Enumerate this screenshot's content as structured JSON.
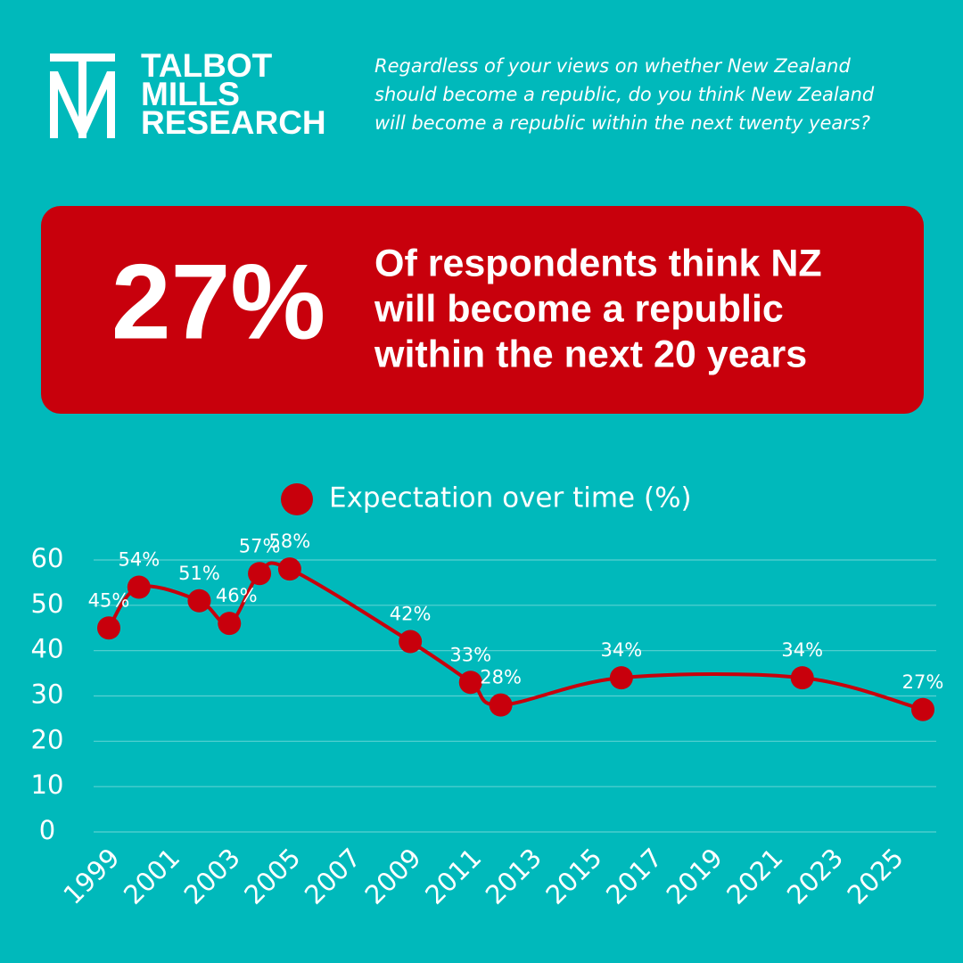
{
  "brand": {
    "lines": [
      "TALBOT",
      "MILLS",
      "RESEARCH"
    ]
  },
  "question": [
    "Regardless of your views on whether New Zealand",
    "should become a republic, do you think New Zealand",
    "will become a republic within the next twenty years?"
  ],
  "headline": {
    "figure": "27%",
    "lines": [
      "Of respondents think NZ",
      "will become a republic",
      "within the next 20 years"
    ]
  },
  "chart_data": {
    "type": "line",
    "x": [
      1999,
      2000,
      2002,
      2003,
      2004,
      2005,
      2009,
      2011,
      2012,
      2016,
      2022,
      2026
    ],
    "series": [
      {
        "name": "Expectation over time (%)",
        "color": "#c8000c",
        "values": [
          45,
          54,
          51,
          46,
          57,
          58,
          42,
          33,
          28,
          34,
          34,
          27
        ],
        "value_labels": [
          "45%",
          "54%",
          "51%",
          "46%",
          "57%",
          "58%",
          "42%",
          "33%",
          "28%",
          "34%",
          "34%",
          "27%"
        ]
      }
    ],
    "xlim": [
      1999,
      2026
    ],
    "xticks": [
      1999,
      2001,
      2003,
      2005,
      2007,
      2009,
      2011,
      2013,
      2015,
      2017,
      2019,
      2021,
      2023,
      2025
    ],
    "ylim": [
      0,
      60
    ],
    "yticks": [
      0,
      10,
      20,
      30,
      40,
      50,
      60
    ],
    "grid": true
  }
}
